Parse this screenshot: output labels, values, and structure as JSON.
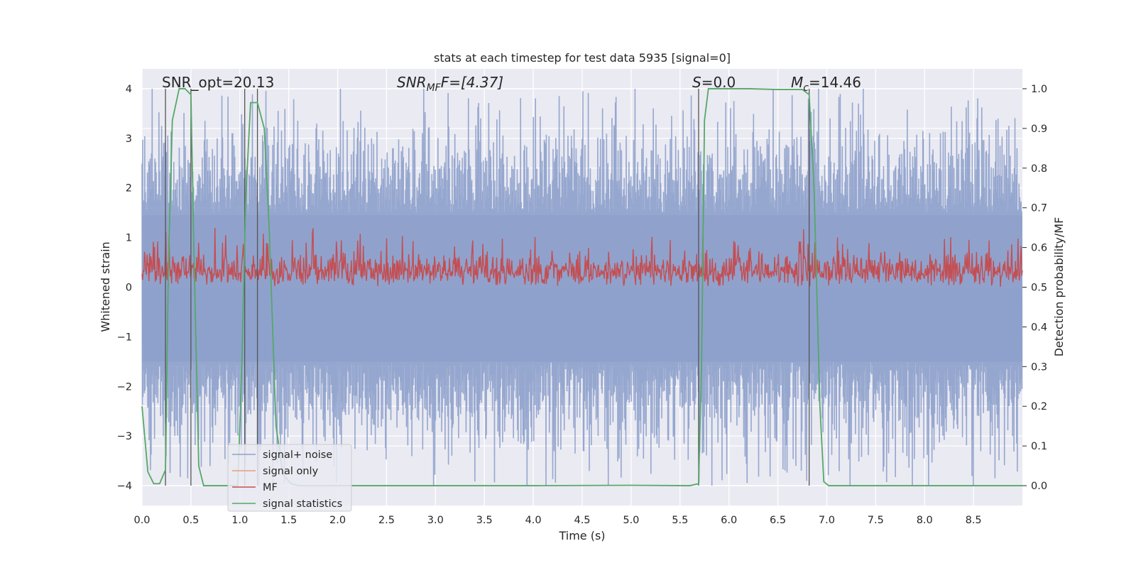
{
  "chart_data": {
    "type": "line",
    "title": "stats at each timestep for test data 5935 [signal=0]",
    "xlabel": "Time (s)",
    "ylabel": "Whitened strain",
    "y2label": "Detection probability/MF",
    "xlim": [
      0,
      9.0
    ],
    "ylim": [
      -4.4,
      4.4
    ],
    "y2lim": [
      -0.05,
      1.05
    ],
    "grid": true,
    "x_ticks": [
      "0.0",
      "0.5",
      "1.0",
      "1.5",
      "2.0",
      "2.5",
      "3.0",
      "3.5",
      "4.0",
      "4.5",
      "5.0",
      "5.5",
      "6.0",
      "6.5",
      "7.0",
      "7.5",
      "8.0",
      "8.5"
    ],
    "x_tick_values": [
      0,
      0.5,
      1,
      1.5,
      2,
      2.5,
      3,
      3.5,
      4,
      4.5,
      5,
      5.5,
      6,
      6.5,
      7,
      7.5,
      8,
      8.5
    ],
    "y_ticks": [
      "−4",
      "−3",
      "−2",
      "−1",
      "0",
      "1",
      "2",
      "3",
      "4"
    ],
    "y_tick_values": [
      -4,
      -3,
      -2,
      -1,
      0,
      1,
      2,
      3,
      4
    ],
    "y2_ticks": [
      "0.0",
      "0.1",
      "0.2",
      "0.3",
      "0.4",
      "0.5",
      "0.6",
      "0.7",
      "0.8",
      "0.9",
      "1.0"
    ],
    "y2_tick_values": [
      0,
      0.1,
      0.2,
      0.3,
      0.4,
      0.5,
      0.6,
      0.7,
      0.8,
      0.9,
      1.0
    ],
    "annotations": {
      "snr_opt": "SNR_opt=20.13",
      "snr_mf_main": "SNR",
      "snr_mf_sub": "MF",
      "snr_mf_rest": "F=[4.37]",
      "s_main": "S",
      "s_rest": "=0.0",
      "mc_main": "M",
      "mc_sub": "c",
      "mc_rest": "=14.46"
    },
    "event_lines_x": [
      0.24,
      0.5,
      1.05,
      1.18,
      5.69,
      6.82
    ],
    "series": [
      {
        "name": "signal+ noise",
        "color": "#8da0cb",
        "amplitude_range": [
          -4.0,
          4.0
        ],
        "typical_band": [
          -1.6,
          1.6
        ]
      },
      {
        "name": "signal only",
        "color": "#e8a07c",
        "values": []
      },
      {
        "name": "MF",
        "color": "#c44e52",
        "baseline": 0.5,
        "typical_range": [
          0.5,
          0.6
        ]
      },
      {
        "name": "signal statistics",
        "color": "#55a868",
        "x": [
          0.0,
          0.06,
          0.12,
          0.18,
          0.24,
          0.27,
          0.31,
          0.38,
          0.44,
          0.5,
          0.53,
          0.58,
          0.63,
          0.7,
          0.8,
          0.9,
          0.98,
          1.02,
          1.06,
          1.11,
          1.18,
          1.25,
          1.3,
          1.37,
          1.44,
          1.52,
          1.6,
          2.0,
          3.0,
          4.0,
          5.0,
          5.6,
          5.69,
          5.72,
          5.75,
          5.79,
          5.83,
          6.2,
          6.5,
          6.75,
          6.82,
          6.87,
          6.93,
          6.97,
          7.02,
          7.5,
          8.0,
          8.5,
          9.0
        ],
        "values": [
          0.2,
          0.035,
          0.005,
          0.005,
          0.04,
          0.55,
          0.92,
          1.0,
          1.0,
          0.985,
          0.6,
          0.05,
          0.0,
          0.0,
          0.0,
          0.0,
          0.0,
          0.3,
          0.72,
          0.965,
          0.965,
          0.9,
          0.65,
          0.15,
          0.03,
          0.005,
          0.0,
          0.0,
          0.0,
          0.0,
          0.001,
          0.0,
          0.005,
          0.3,
          0.92,
          1.0,
          1.0,
          1.0,
          0.998,
          0.998,
          0.985,
          0.75,
          0.2,
          0.01,
          0.0,
          0.0,
          0.0,
          0.0,
          0.0
        ]
      }
    ],
    "legend": {
      "placement": "lower-left",
      "entries": [
        {
          "label": "signal+ noise",
          "color": "#8da0cb"
        },
        {
          "label": "signal only",
          "color": "#e8a07c"
        },
        {
          "label": "MF",
          "color": "#c44e52"
        },
        {
          "label": "signal statistics",
          "color": "#55a868"
        }
      ]
    }
  }
}
